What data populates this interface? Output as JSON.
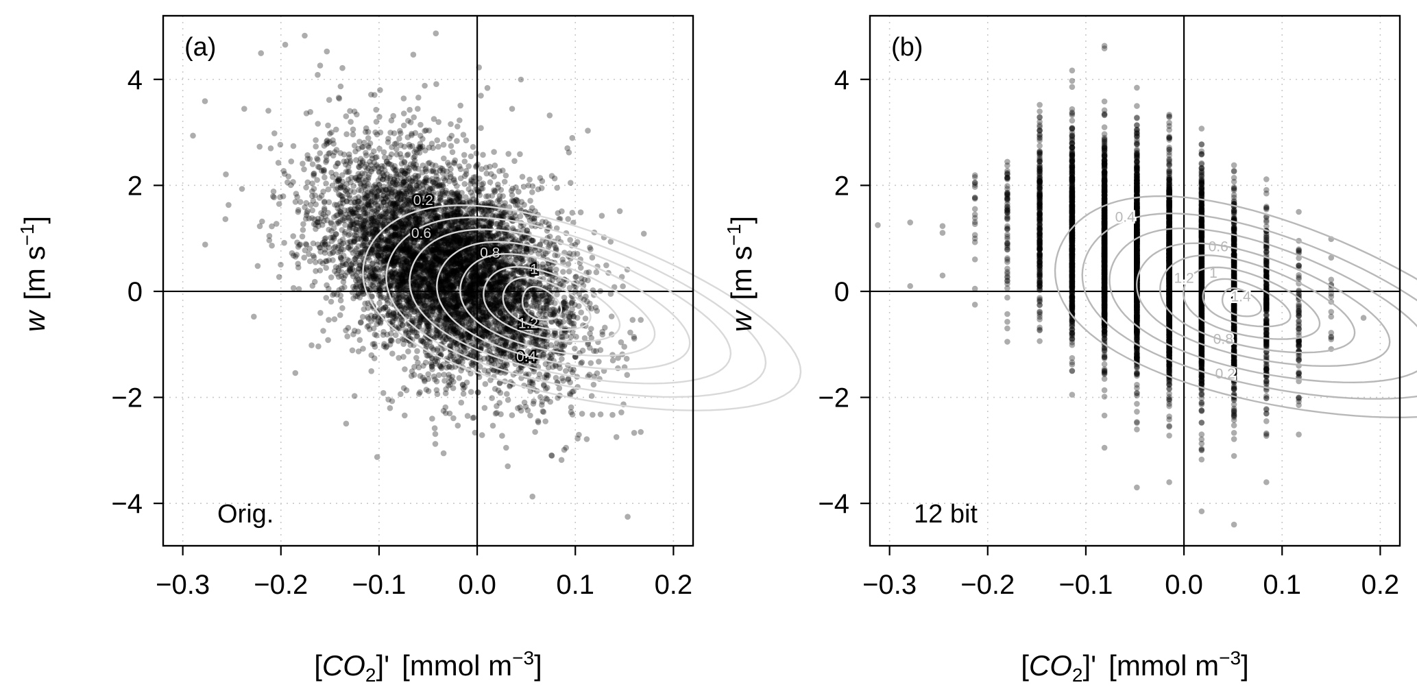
{
  "chart_data": [
    {
      "type": "scatter",
      "panel_label": "(a)",
      "annotation": "Orig.",
      "xlabel": {
        "prefix": "[",
        "var": "CO",
        "sub": "2",
        "after": "]'",
        "units": "[mmol m",
        "exp": "−3",
        "close": "]"
      },
      "ylabel": {
        "var": "w",
        "units": "[m s",
        "exp": "−1",
        "close": "]"
      },
      "xlim": [
        -0.32,
        0.22
      ],
      "ylim": [
        -4.8,
        5.2
      ],
      "x_ticks": [
        -0.3,
        -0.2,
        -0.1,
        0.0,
        0.1,
        0.2
      ],
      "x_tick_labels": [
        "−0.3",
        "−0.2",
        "−0.1",
        "0.0",
        "0.1",
        "0.2"
      ],
      "y_ticks": [
        -4,
        -2,
        0,
        2,
        4
      ],
      "y_tick_labels": [
        "−4",
        "−2",
        "0",
        "2",
        "4"
      ],
      "grid": true,
      "reference_lines": {
        "x": 0,
        "y": 0
      },
      "point_cloud": {
        "center": [
          -0.03,
          0.45
        ],
        "sd_x": 0.062,
        "sd_y": 1.05,
        "correlation": -0.45,
        "n_points": 6500,
        "x_range": [
          -0.3,
          0.17
        ],
        "y_range": [
          -4.4,
          4.9
        ],
        "color": "#000000",
        "opacity": 0.32,
        "quantized": false
      },
      "contours": {
        "color": "#d9d9d9",
        "center": [
          0.062,
          -0.22
        ],
        "levels": [
          {
            "value": 0.2,
            "label": "0.2",
            "size": [
              0.225,
              1.65
            ],
            "label_point": [
              -0.055,
              1.72
            ]
          },
          {
            "value": 0.4,
            "label": "0.4",
            "size": [
              0.195,
              1.45
            ],
            "label_point": [
              0.05,
              -1.23
            ]
          },
          {
            "value": 0.6,
            "label": "0.6",
            "size": [
              0.165,
              1.25
            ],
            "label_point": [
              -0.057,
              1.1
            ]
          },
          {
            "value": 0.8,
            "label": "0.8",
            "size": [
              0.13,
              1.05
            ],
            "label_point": [
              0.013,
              0.73
            ]
          },
          {
            "value": 1.0,
            "label": "1",
            "size": [
              0.1,
              0.85
            ],
            "label_point": [
              0.058,
              0.42
            ]
          },
          {
            "value": 1.2,
            "label": "1.2",
            "size": [
              0.07,
              0.63
            ],
            "label_point": [
              0.052,
              -0.6
            ]
          },
          {
            "value": 1.3,
            "label": "",
            "size": [
              0.045,
              0.45
            ],
            "label_point": null
          },
          {
            "value": 1.4,
            "label": "",
            "size": [
              0.02,
              0.3
            ],
            "label_point": null
          }
        ]
      }
    },
    {
      "type": "scatter",
      "panel_label": "(b)",
      "annotation": "12 bit",
      "xlabel": {
        "prefix": "[",
        "var": "CO",
        "sub": "2",
        "after": "]'",
        "units": "[mmol m",
        "exp": "−3",
        "close": "]"
      },
      "ylabel": {
        "var": "w",
        "units": "[m s",
        "exp": "−1",
        "close": "]"
      },
      "xlim": [
        -0.32,
        0.22
      ],
      "ylim": [
        -4.8,
        5.2
      ],
      "x_ticks": [
        -0.3,
        -0.2,
        -0.1,
        0.0,
        0.1,
        0.2
      ],
      "x_tick_labels": [
        "−0.3",
        "−0.2",
        "−0.1",
        "0.0",
        "0.1",
        "0.2"
      ],
      "y_ticks": [
        -4,
        -2,
        0,
        2,
        4
      ],
      "y_tick_labels": [
        "−4",
        "−2",
        "0",
        "2",
        "4"
      ],
      "grid": true,
      "reference_lines": {
        "x": 0,
        "y": 0
      },
      "quantized_columns": [
        {
          "x": -0.312,
          "dense": [
            1.25,
            1.25
          ],
          "outliers": [
            1.25
          ]
        },
        {
          "x": -0.279,
          "dense": [
            0.55,
            1.3
          ],
          "outliers": [
            0.1,
            1.3
          ]
        },
        {
          "x": -0.246,
          "dense": [
            0.45,
            1.5
          ],
          "outliers": [
            0.3
          ]
        },
        {
          "x": -0.213,
          "dense": [
            0.3,
            2.2
          ],
          "outliers": [
            -0.25,
            0.05
          ]
        },
        {
          "x": -0.18,
          "dense": [
            -0.75,
            2.55
          ],
          "outliers": [
            -0.95
          ]
        },
        {
          "x": -0.147,
          "dense": [
            -0.95,
            3.7
          ],
          "outliers": []
        },
        {
          "x": -0.114,
          "dense": [
            -1.85,
            4.45
          ],
          "outliers": [
            -1.95
          ]
        },
        {
          "x": -0.081,
          "dense": [
            -2.8,
            4.8
          ],
          "outliers": [
            -2.95
          ]
        },
        {
          "x": -0.048,
          "dense": [
            -2.9,
            4.3
          ],
          "outliers": [
            -3.7
          ]
        },
        {
          "x": -0.015,
          "dense": [
            -3.4,
            3.5
          ],
          "outliers": [
            -3.6
          ]
        },
        {
          "x": 0.018,
          "dense": [
            -3.2,
            3.6
          ],
          "outliers": [
            -4.15
          ]
        },
        {
          "x": 0.051,
          "dense": [
            -3.4,
            2.5
          ],
          "outliers": [
            -4.4
          ]
        },
        {
          "x": 0.084,
          "dense": [
            -3.5,
            2.8
          ],
          "outliers": [
            -3.6
          ]
        },
        {
          "x": 0.117,
          "dense": [
            -2.2,
            1.0
          ],
          "outliers": [
            -2.7,
            1.5
          ]
        },
        {
          "x": 0.15,
          "dense": [
            -1.1,
            1.0
          ],
          "outliers": []
        },
        {
          "x": 0.183,
          "dense": [
            -0.5,
            -0.5
          ],
          "outliers": [
            -0.5
          ]
        }
      ],
      "point_cloud": {
        "center": [
          -0.03,
          0.45
        ],
        "sd_x": 0.062,
        "sd_y": 1.05,
        "correlation": -0.45,
        "n_points": 6500,
        "color": "#000000",
        "opacity": 0.32,
        "quantized": true
      },
      "contours": {
        "color": "#b8b8b8",
        "center": [
          0.055,
          -0.2
        ],
        "levels": [
          {
            "value": 0.2,
            "label": "0.2",
            "size": [
              0.235,
              1.8
            ],
            "label_point": [
              0.042,
              -1.55
            ]
          },
          {
            "value": 0.4,
            "label": "0.4",
            "size": [
              0.2,
              1.5
            ],
            "label_point": [
              -0.06,
              1.4
            ]
          },
          {
            "value": 0.6,
            "label": "0.6",
            "size": [
              0.165,
              1.25
            ],
            "label_point": [
              0.035,
              0.85
            ]
          },
          {
            "value": 0.8,
            "label": "0.8",
            "size": [
              0.13,
              1.0
            ],
            "label_point": [
              0.04,
              -0.9
            ]
          },
          {
            "value": 1.0,
            "label": "1",
            "size": [
              0.1,
              0.8
            ],
            "label_point": [
              0.03,
              0.35
            ]
          },
          {
            "value": 1.2,
            "label": "1.2",
            "size": [
              0.07,
              0.6
            ],
            "label_point": [
              0.0,
              0.25
            ]
          },
          {
            "value": 1.3,
            "label": "",
            "size": [
              0.045,
              0.4
            ],
            "label_point": null
          },
          {
            "value": 1.4,
            "label": "1.4",
            "size": [
              0.02,
              0.25
            ],
            "label_point": [
              0.058,
              -0.1
            ]
          }
        ]
      }
    }
  ]
}
